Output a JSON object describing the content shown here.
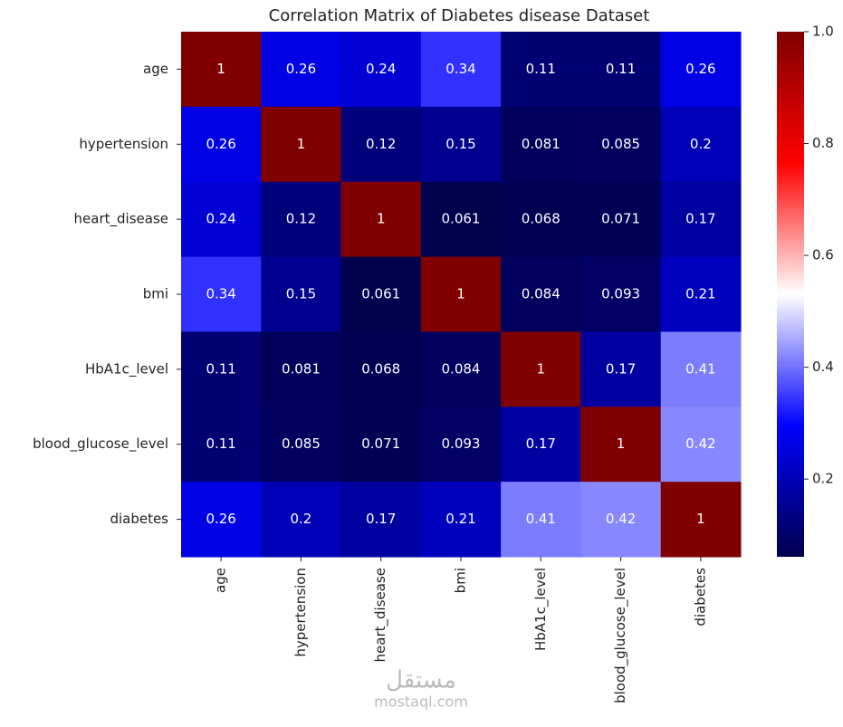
{
  "chart_data": {
    "type": "heatmap",
    "title": "Correlation Matrix of Diabetes disease Dataset",
    "categories": [
      "age",
      "hypertension",
      "heart_disease",
      "bmi",
      "HbA1c_level",
      "blood_glucose_level",
      "diabetes"
    ],
    "values": [
      [
        1,
        0.26,
        0.24,
        0.34,
        0.11,
        0.11,
        0.26
      ],
      [
        0.26,
        1,
        0.12,
        0.15,
        0.081,
        0.085,
        0.2
      ],
      [
        0.24,
        0.12,
        1,
        0.061,
        0.068,
        0.071,
        0.17
      ],
      [
        0.34,
        0.15,
        0.061,
        1,
        0.084,
        0.093,
        0.21
      ],
      [
        0.11,
        0.081,
        0.068,
        0.084,
        1,
        0.17,
        0.41
      ],
      [
        0.11,
        0.085,
        0.071,
        0.093,
        0.17,
        1,
        0.42
      ],
      [
        0.26,
        0.2,
        0.17,
        0.21,
        0.41,
        0.42,
        1
      ]
    ],
    "colormap": "seismic",
    "zlim": [
      0.061,
      1
    ],
    "zticks": [
      0.2,
      0.4,
      0.6,
      0.8,
      {
        "value": 1,
        "label": "1.0"
      }
    ],
    "watermark": [
      "مستقل",
      "mostaql.com"
    ]
  }
}
